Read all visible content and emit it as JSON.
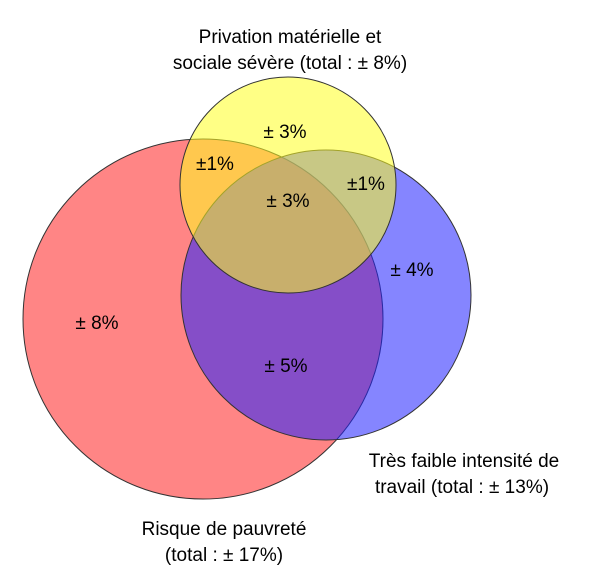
{
  "sets": {
    "poverty": {
      "label_line1": "Risque de pauvreté",
      "label_line2": "(total : ± 17%)",
      "color": "#ff2020"
    },
    "deprivation": {
      "label_line1": "Privation matérielle et",
      "label_line2": "sociale sévère (total : ± 8%)",
      "color": "#ffff20"
    },
    "work_intensity": {
      "label_line1": "Très faible intensité de",
      "label_line2": "travail (total : ± 13%)",
      "color": "#2020ff"
    }
  },
  "regions": {
    "poverty_only": "± 8%",
    "deprivation_only": "± 3%",
    "work_only": "± 4%",
    "poverty_deprivation": "±1%",
    "deprivation_work": "±1%",
    "all_three": "± 3%",
    "poverty_work": "± 5%"
  },
  "colors": {
    "outline": "#333333"
  }
}
